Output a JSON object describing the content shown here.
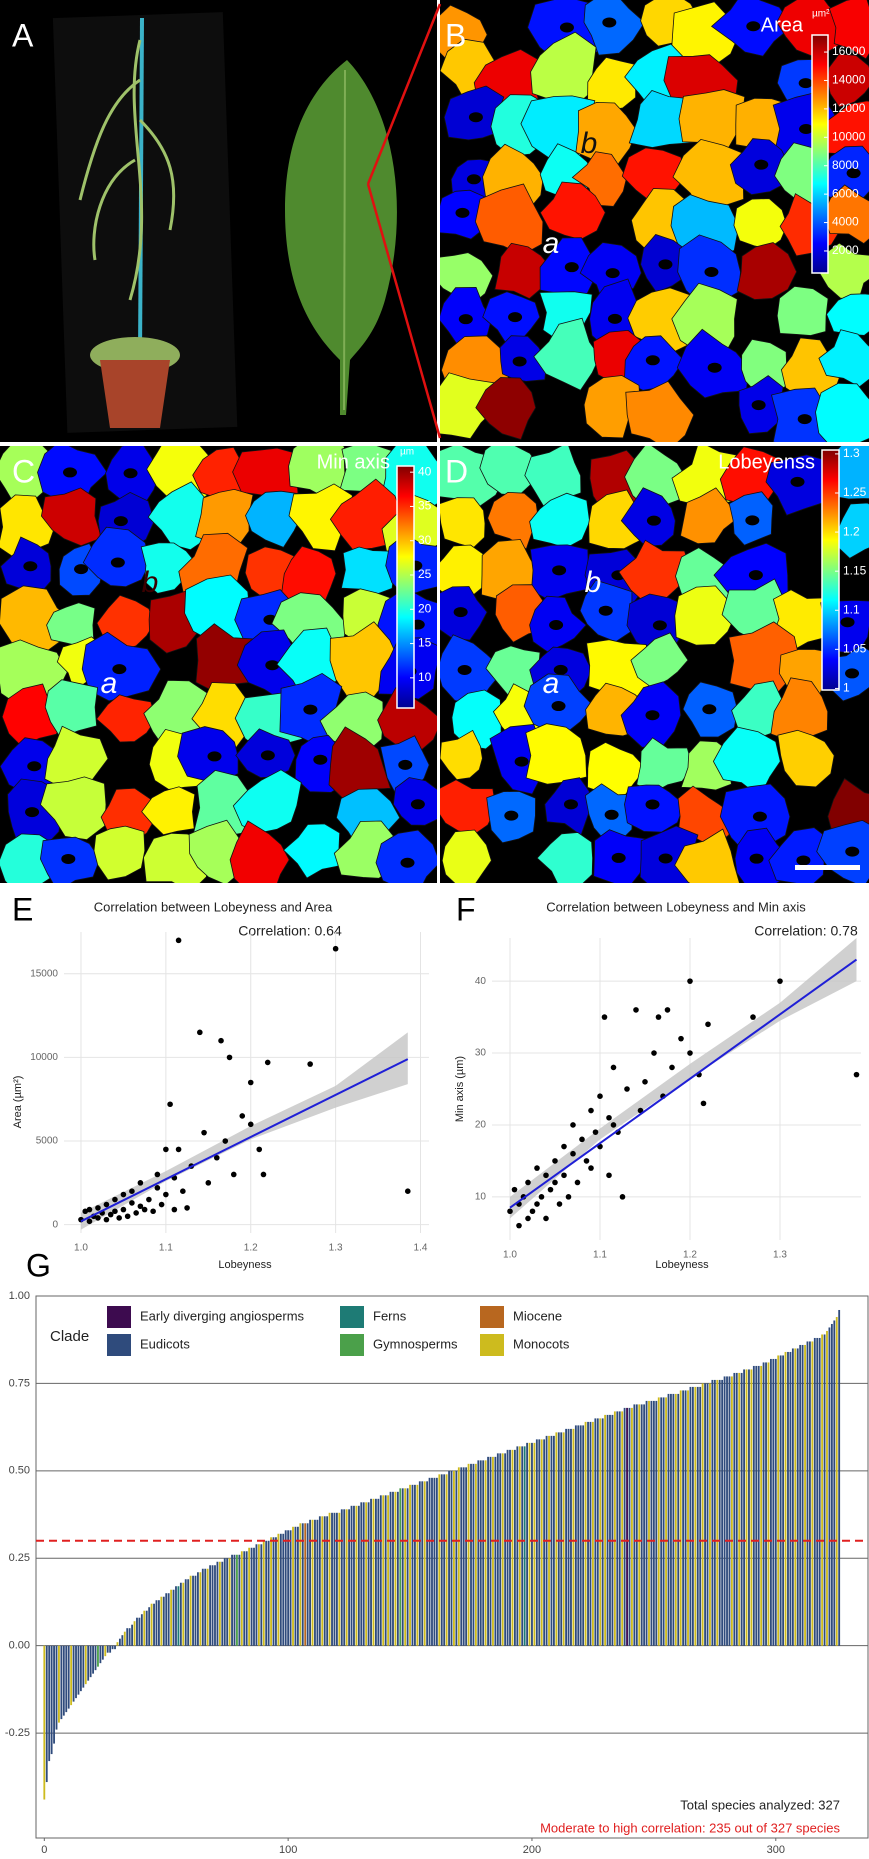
{
  "panels": [
    {
      "label": "A"
    },
    {
      "label": "B",
      "title": "Area",
      "colorbar": {
        "unit": "µm²",
        "lim": [
          450,
          17200
        ],
        "ticks": [
          2000,
          4000,
          6000,
          8000,
          10000,
          12000,
          14000,
          16000
        ]
      },
      "cell_labels": [
        "a",
        "b"
      ]
    },
    {
      "label": "C",
      "title": "Min axis",
      "colorbar": {
        "unit": "µm",
        "lim": [
          5.6,
          40.9
        ],
        "ticks": [
          10,
          15,
          20,
          25,
          30,
          35,
          40
        ]
      },
      "cell_labels": [
        "a",
        "b"
      ]
    },
    {
      "label": "D",
      "title": "Lobeyenss",
      "colorbar": {
        "lim": [
          0.998,
          1.305
        ],
        "ticks": [
          1,
          1.05,
          1.1,
          1.15,
          1.2,
          1.25,
          1.3
        ]
      },
      "cell_labels": [
        "a",
        "b"
      ]
    }
  ],
  "chart_data": [
    {
      "type": "scatter",
      "panel_label": "E",
      "title": "Correlation between Lobeyness and Area",
      "annotation": "Correlation:  0.64",
      "x_label": "Lobeyness",
      "y_label": "Area (µm²)",
      "x": [
        1.0,
        1.005,
        1.01,
        1.01,
        1.015,
        1.02,
        1.02,
        1.025,
        1.03,
        1.03,
        1.035,
        1.04,
        1.04,
        1.045,
        1.05,
        1.05,
        1.055,
        1.06,
        1.06,
        1.065,
        1.07,
        1.07,
        1.075,
        1.08,
        1.085,
        1.09,
        1.09,
        1.095,
        1.1,
        1.1,
        1.105,
        1.11,
        1.11,
        1.115,
        1.12,
        1.125,
        1.13,
        1.14,
        1.145,
        1.15,
        1.16,
        1.165,
        1.17,
        1.18,
        1.19,
        1.2,
        1.21,
        1.215,
        1.22,
        1.27,
        1.3,
        1.385,
        1.115,
        1.175,
        1.2
      ],
      "y": [
        300,
        800,
        200,
        900,
        500,
        1000,
        400,
        700,
        300,
        1200,
        600,
        1500,
        800,
        400,
        1800,
        900,
        500,
        1300,
        2000,
        700,
        1100,
        2500,
        900,
        1500,
        800,
        2200,
        3000,
        1200,
        4500,
        1800,
        7200,
        2800,
        900,
        17000,
        2000,
        1000,
        3500,
        11500,
        5500,
        2500,
        4000,
        11000,
        5000,
        3000,
        6500,
        8500,
        4500,
        3000,
        9700,
        9600,
        16500,
        2000,
        4500,
        10000,
        6000
      ],
      "color": "#000000",
      "fit": {
        "x": [
          1.0,
          1.385
        ],
        "y": [
          200,
          9900
        ],
        "color": "#1f1fd6"
      },
      "band": {
        "x": [
          1.0,
          1.1,
          1.2,
          1.3,
          1.385
        ],
        "lower": [
          -300,
          2600,
          5100,
          7000,
          8400
        ],
        "upper": [
          700,
          3200,
          5900,
          8300,
          11500
        ],
        "color": "#c4c4c4"
      },
      "xlim": [
        0.98,
        1.41
      ],
      "ylim": [
        -500,
        17500
      ],
      "xticks": [
        {
          "value": 1,
          "label": "1.0"
        },
        1.1,
        1.2,
        1.3,
        1.4
      ],
      "yticks": [
        0,
        5000,
        10000,
        15000
      ],
      "grid": true
    },
    {
      "type": "scatter",
      "panel_label": "F",
      "title": "Correlation between Lobeyness and Min axis",
      "annotation": "Correlation:  0.78",
      "x_label": "Lobeyness",
      "y_label": "Min axis (µm)",
      "x": [
        1.0,
        1.005,
        1.01,
        1.01,
        1.015,
        1.02,
        1.02,
        1.025,
        1.03,
        1.03,
        1.035,
        1.04,
        1.04,
        1.045,
        1.05,
        1.05,
        1.055,
        1.06,
        1.06,
        1.065,
        1.07,
        1.07,
        1.075,
        1.08,
        1.085,
        1.09,
        1.09,
        1.095,
        1.1,
        1.1,
        1.105,
        1.11,
        1.11,
        1.115,
        1.12,
        1.125,
        1.13,
        1.14,
        1.145,
        1.15,
        1.16,
        1.165,
        1.17,
        1.18,
        1.19,
        1.2,
        1.21,
        1.215,
        1.22,
        1.27,
        1.3,
        1.385,
        1.115,
        1.175,
        1.2
      ],
      "y": [
        8,
        11,
        6,
        9,
        10,
        7,
        12,
        8,
        9,
        14,
        10,
        13,
        7,
        11,
        15,
        12,
        9,
        17,
        13,
        10,
        16,
        20,
        12,
        18,
        15,
        22,
        14,
        19,
        24,
        17,
        35,
        21,
        13,
        28,
        19,
        10,
        25,
        36,
        22,
        26,
        30,
        35,
        24,
        28,
        32,
        40,
        27,
        23,
        34,
        35,
        40,
        27,
        20,
        36,
        30
      ],
      "color": "#000000",
      "fit": {
        "x": [
          1.0,
          1.385
        ],
        "y": [
          8.5,
          43
        ],
        "color": "#1f1fd6"
      },
      "band": {
        "x": [
          1.0,
          1.1,
          1.2,
          1.3,
          1.385
        ],
        "lower": [
          7,
          18,
          26.5,
          34.5,
          40
        ],
        "upper": [
          10,
          19.5,
          28.5,
          37,
          46
        ],
        "color": "#c4c4c4"
      },
      "xlim": [
        0.98,
        1.39
      ],
      "ylim": [
        4,
        46
      ],
      "xticks": [
        {
          "value": 1,
          "label": "1.0"
        },
        1.1,
        1.2,
        1.3
      ],
      "yticks": [
        10,
        20,
        30,
        40
      ],
      "grid": true
    },
    {
      "type": "bar",
      "panel_label": "G",
      "values": [
        -0.44,
        -0.39,
        -0.33,
        -0.31,
        -0.28,
        -0.24,
        -0.22,
        -0.21,
        -0.2,
        -0.19,
        -0.18,
        -0.17,
        -0.16,
        -0.15,
        -0.14,
        -0.13,
        -0.12,
        -0.11,
        -0.1,
        -0.09,
        -0.08,
        -0.07,
        -0.06,
        -0.05,
        -0.04,
        -0.03,
        -0.02,
        -0.02,
        -0.01,
        -0.01,
        0.01,
        0.02,
        0.03,
        0.04,
        0.05,
        0.05,
        0.06,
        0.07,
        0.08,
        0.08,
        0.09,
        0.1,
        0.1,
        0.11,
        0.12,
        0.12,
        0.13,
        0.13,
        0.14,
        0.14,
        0.15,
        0.15,
        0.16,
        0.16,
        0.17,
        0.17,
        0.18,
        0.18,
        0.19,
        0.19,
        0.2,
        0.2,
        0.2,
        0.21,
        0.21,
        0.22,
        0.22,
        0.22,
        0.23,
        0.23,
        0.23,
        0.24,
        0.24,
        0.24,
        0.25,
        0.25,
        0.25,
        0.26,
        0.26,
        0.26,
        0.26,
        0.27,
        0.27,
        0.27,
        0.28,
        0.28,
        0.28,
        0.29,
        0.29,
        0.29,
        0.3,
        0.3,
        0.3,
        0.31,
        0.31,
        0.31,
        0.32,
        0.32,
        0.32,
        0.33,
        0.33,
        0.33,
        0.34,
        0.34,
        0.34,
        0.35,
        0.35,
        0.35,
        0.35,
        0.36,
        0.36,
        0.36,
        0.36,
        0.37,
        0.37,
        0.37,
        0.37,
        0.38,
        0.38,
        0.38,
        0.38,
        0.38,
        0.39,
        0.39,
        0.39,
        0.39,
        0.4,
        0.4,
        0.4,
        0.4,
        0.41,
        0.41,
        0.41,
        0.41,
        0.42,
        0.42,
        0.42,
        0.42,
        0.43,
        0.43,
        0.43,
        0.43,
        0.44,
        0.44,
        0.44,
        0.44,
        0.45,
        0.45,
        0.45,
        0.45,
        0.46,
        0.46,
        0.46,
        0.46,
        0.47,
        0.47,
        0.47,
        0.47,
        0.48,
        0.48,
        0.48,
        0.48,
        0.49,
        0.49,
        0.49,
        0.49,
        0.5,
        0.5,
        0.5,
        0.5,
        0.51,
        0.51,
        0.51,
        0.51,
        0.52,
        0.52,
        0.52,
        0.52,
        0.53,
        0.53,
        0.53,
        0.53,
        0.54,
        0.54,
        0.54,
        0.54,
        0.55,
        0.55,
        0.55,
        0.55,
        0.56,
        0.56,
        0.56,
        0.56,
        0.57,
        0.57,
        0.57,
        0.57,
        0.58,
        0.58,
        0.58,
        0.58,
        0.59,
        0.59,
        0.59,
        0.59,
        0.6,
        0.6,
        0.6,
        0.6,
        0.61,
        0.61,
        0.61,
        0.61,
        0.62,
        0.62,
        0.62,
        0.62,
        0.63,
        0.63,
        0.63,
        0.63,
        0.64,
        0.64,
        0.64,
        0.64,
        0.65,
        0.65,
        0.65,
        0.65,
        0.66,
        0.66,
        0.66,
        0.66,
        0.67,
        0.67,
        0.67,
        0.67,
        0.68,
        0.68,
        0.68,
        0.68,
        0.69,
        0.69,
        0.69,
        0.69,
        0.69,
        0.7,
        0.7,
        0.7,
        0.7,
        0.7,
        0.71,
        0.71,
        0.71,
        0.71,
        0.72,
        0.72,
        0.72,
        0.72,
        0.72,
        0.73,
        0.73,
        0.73,
        0.73,
        0.74,
        0.74,
        0.74,
        0.74,
        0.74,
        0.75,
        0.75,
        0.75,
        0.75,
        0.76,
        0.76,
        0.76,
        0.76,
        0.76,
        0.77,
        0.77,
        0.77,
        0.77,
        0.78,
        0.78,
        0.78,
        0.78,
        0.79,
        0.79,
        0.79,
        0.79,
        0.8,
        0.8,
        0.8,
        0.8,
        0.81,
        0.81,
        0.81,
        0.82,
        0.82,
        0.82,
        0.83,
        0.83,
        0.83,
        0.84,
        0.84,
        0.84,
        0.85,
        0.85,
        0.85,
        0.86,
        0.86,
        0.86,
        0.87,
        0.87,
        0.87,
        0.88,
        0.88,
        0.88,
        0.89,
        0.89,
        0.9,
        0.91,
        0.92,
        0.93,
        0.94,
        0.96
      ],
      "clade_of_bar": [
        5,
        1,
        1,
        1,
        1,
        1,
        5,
        1,
        1,
        1,
        1,
        5,
        1,
        1,
        1,
        1,
        1,
        5,
        1,
        1,
        1,
        1,
        3,
        1,
        1,
        5,
        1,
        1,
        1,
        1,
        5,
        1,
        1,
        5,
        1,
        1,
        1,
        5,
        1,
        1,
        1,
        5,
        1,
        1,
        5,
        1,
        1,
        1,
        5,
        1,
        1,
        1,
        5,
        1,
        1,
        2,
        1,
        5,
        1,
        1,
        5,
        1,
        1,
        1,
        5,
        1,
        1,
        5,
        1,
        1,
        1,
        1,
        5,
        1,
        1,
        1,
        5,
        1,
        1,
        3,
        1,
        5,
        1,
        1,
        5,
        1,
        1,
        1,
        5,
        1,
        5,
        1,
        1,
        5,
        1,
        1,
        5,
        1,
        1,
        1,
        1,
        1,
        5,
        1,
        1,
        5,
        1,
        4,
        1,
        1,
        5,
        1,
        1,
        1,
        5,
        1,
        1,
        5,
        1,
        1,
        1,
        5,
        1,
        1,
        5,
        1,
        1,
        1,
        5,
        1,
        1,
        1,
        5,
        1,
        1,
        5,
        1,
        1,
        1,
        5,
        1,
        5,
        1,
        1,
        5,
        1,
        3,
        1,
        5,
        1,
        5,
        1,
        1,
        5,
        1,
        1,
        5,
        1,
        1,
        1,
        1,
        1,
        5,
        1,
        1,
        5,
        1,
        1,
        5,
        1,
        5,
        1,
        1,
        1,
        5,
        1,
        1,
        5,
        1,
        1,
        1,
        5,
        1,
        1,
        5,
        1,
        1,
        1,
        5,
        1,
        1,
        1,
        5,
        1,
        1,
        5,
        1,
        2,
        1,
        5,
        1,
        5,
        1,
        1,
        5,
        1,
        1,
        5,
        1,
        1,
        5,
        1,
        1,
        5,
        1,
        1,
        1,
        5,
        1,
        1,
        1,
        1,
        5,
        1,
        1,
        5,
        1,
        1,
        5,
        1,
        5,
        1,
        1,
        1,
        5,
        1,
        1,
        5,
        1,
        0,
        1,
        5,
        1,
        1,
        5,
        1,
        1,
        1,
        5,
        1,
        1,
        1,
        5,
        1,
        1,
        5,
        1,
        1,
        1,
        5,
        1,
        5,
        1,
        1,
        5,
        1,
        1,
        5,
        1,
        1,
        5,
        1,
        1,
        5,
        1,
        1,
        5,
        1,
        1,
        1,
        1,
        1,
        5,
        1,
        1,
        5,
        1,
        1,
        5,
        1,
        5,
        1,
        1,
        1,
        5,
        1,
        1,
        5,
        1,
        1,
        1,
        5,
        1,
        1,
        5,
        1,
        1,
        1,
        5,
        1,
        1,
        1,
        5,
        1,
        1,
        5,
        1,
        1,
        1,
        5,
        1,
        5,
        1,
        1,
        1,
        5,
        1
      ],
      "legend_title": "Clade",
      "clades": [
        {
          "name": "Early diverging angiosperms",
          "color": "#3d0b4f"
        },
        {
          "name": "Eudicots",
          "color": "#2f4b7c"
        },
        {
          "name": "Ferns",
          "color": "#1e7b75"
        },
        {
          "name": "Gymnosperms",
          "color": "#4ba04a"
        },
        {
          "name": "Miocene",
          "color": "#b8671f"
        },
        {
          "name": "Monocots",
          "color": "#cdbb1e"
        }
      ],
      "threshold": 0.3,
      "threshold_color": "#e02020",
      "xlim": [
        -3,
        337
      ],
      "xticks": [
        0,
        100,
        200,
        300
      ],
      "ylim": [
        -0.55,
        1
      ],
      "yticks": [
        {
          "value": -0.25,
          "label": "-0.25"
        },
        {
          "value": 0,
          "label": "0.00"
        },
        {
          "value": 0.25,
          "label": "0.25"
        },
        {
          "value": 0.5,
          "label": "0.50"
        },
        {
          "value": 0.75,
          "label": "0.75"
        },
        {
          "value": 1,
          "label": "1.00"
        }
      ],
      "annotations": [
        {
          "text": "Total species analyzed: 327",
          "color": "#222222"
        },
        {
          "text": "Moderate to high correlation: 235 out of 327 species",
          "color": "#e02020"
        }
      ]
    }
  ]
}
